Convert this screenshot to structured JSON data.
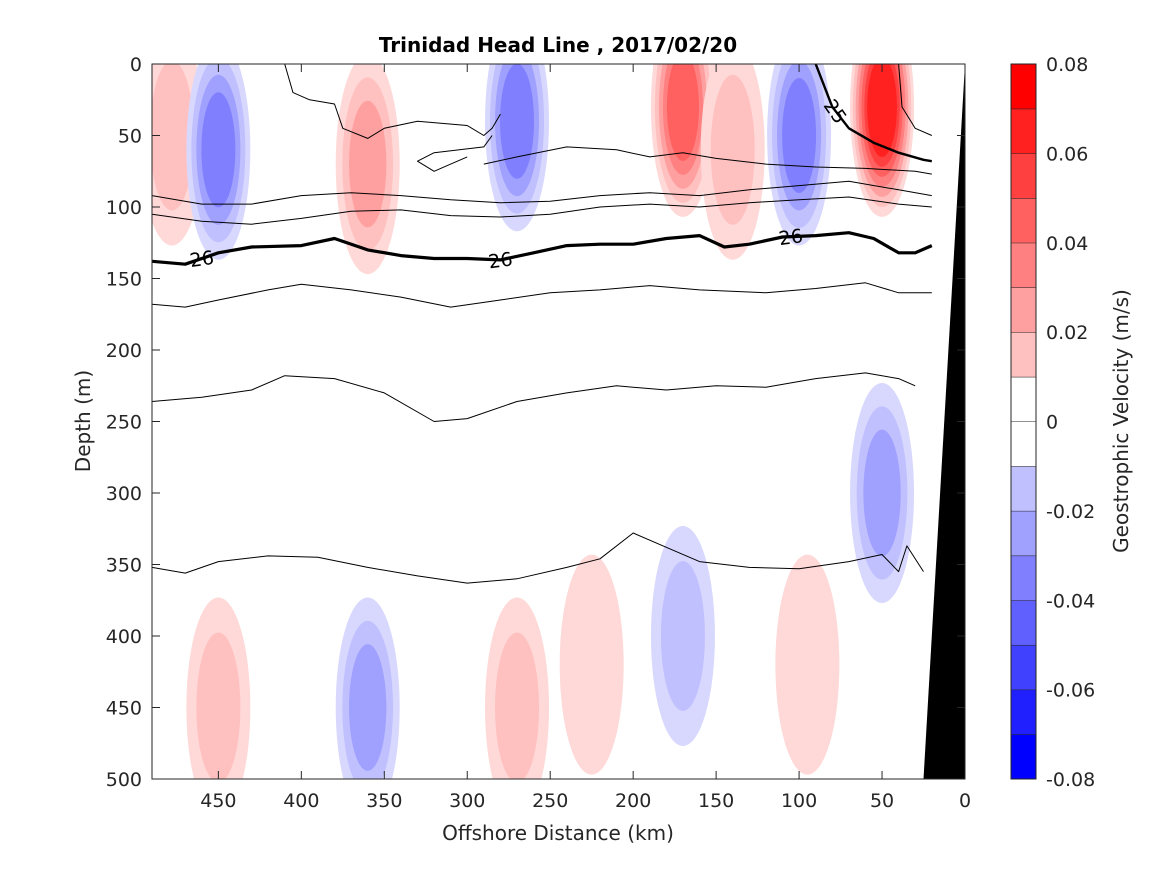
{
  "chart_data": {
    "type": "heatmap",
    "title": "Trinidad Head Line , 2017/02/20",
    "xlabel": "Offshore Distance (km)",
    "ylabel": "Depth (m)",
    "colorbar_label": "Geostrophic Velocity (m/s)",
    "xlim": [
      490,
      0
    ],
    "ylim": [
      0,
      500
    ],
    "x_ticks": [
      450,
      400,
      350,
      300,
      250,
      200,
      150,
      100,
      50,
      0
    ],
    "y_ticks": [
      0,
      50,
      100,
      150,
      200,
      250,
      300,
      350,
      400,
      450,
      500
    ],
    "colorbar_levels": [
      -0.08,
      -0.07,
      -0.06,
      -0.05,
      -0.04,
      -0.03,
      -0.02,
      -0.01,
      0,
      0.01,
      0.02,
      0.03,
      0.04,
      0.05,
      0.06,
      0.07,
      0.08
    ],
    "colorbar_tick_labels": [
      "0.08",
      "0.06",
      "0.04",
      "0.02",
      "0",
      "-0.02",
      "-0.04",
      "-0.06",
      "-0.08"
    ],
    "colorbar_colors": [
      "#0000ff",
      "#2020ff",
      "#4040ff",
      "#6060ff",
      "#8080ff",
      "#a0a0ff",
      "#c0c0ff",
      "#d8d8ff",
      "#ffffff",
      "#ffffff",
      "#ffd8d8",
      "#ffc0c0",
      "#ffa0a0",
      "#ff8080",
      "#ff6060",
      "#ff4040",
      "#ff2020",
      "#ff0000"
    ],
    "velocity_cores": [
      {
        "x": 478,
        "depth": 50,
        "velocity": 0.02
      },
      {
        "x": 450,
        "depth": 60,
        "velocity": -0.04
      },
      {
        "x": 360,
        "depth": 70,
        "velocity": 0.03
      },
      {
        "x": 270,
        "depth": 40,
        "velocity": -0.04
      },
      {
        "x": 170,
        "depth": 30,
        "velocity": 0.05
      },
      {
        "x": 140,
        "depth": 60,
        "velocity": 0.02
      },
      {
        "x": 100,
        "depth": 50,
        "velocity": -0.04
      },
      {
        "x": 50,
        "depth": 30,
        "velocity": 0.07
      },
      {
        "x": 450,
        "depth": 450,
        "velocity": 0.02
      },
      {
        "x": 360,
        "depth": 450,
        "velocity": -0.03
      },
      {
        "x": 270,
        "depth": 450,
        "velocity": 0.02
      },
      {
        "x": 225,
        "depth": 420,
        "velocity": 0.01
      },
      {
        "x": 170,
        "depth": 400,
        "velocity": -0.02
      },
      {
        "x": 95,
        "depth": 420,
        "velocity": 0.01
      },
      {
        "x": 50,
        "depth": 300,
        "velocity": -0.03
      }
    ],
    "isopycnals": [
      {
        "label": "25",
        "width": 2.4,
        "points": [
          [
            90,
            0
          ],
          [
            80,
            30
          ],
          [
            70,
            45
          ],
          [
            55,
            55
          ],
          [
            40,
            62
          ],
          [
            25,
            67
          ],
          [
            20,
            68
          ]
        ]
      },
      {
        "label": "",
        "width": 1,
        "points": [
          [
            290,
            70
          ],
          [
            270,
            65
          ],
          [
            240,
            58
          ],
          [
            210,
            60
          ],
          [
            190,
            65
          ],
          [
            170,
            62
          ],
          [
            150,
            66
          ],
          [
            120,
            70
          ],
          [
            90,
            72
          ],
          [
            60,
            73
          ],
          [
            30,
            75
          ],
          [
            20,
            77
          ]
        ]
      },
      {
        "label": "",
        "width": 1,
        "points": [
          [
            490,
            92
          ],
          [
            460,
            98
          ],
          [
            430,
            98
          ],
          [
            400,
            92
          ],
          [
            370,
            90
          ],
          [
            340,
            92
          ],
          [
            310,
            95
          ],
          [
            280,
            97
          ],
          [
            250,
            96
          ],
          [
            220,
            92
          ],
          [
            190,
            90
          ],
          [
            160,
            92
          ],
          [
            130,
            88
          ],
          [
            100,
            85
          ],
          [
            70,
            82
          ],
          [
            40,
            88
          ],
          [
            20,
            92
          ]
        ]
      },
      {
        "label": "",
        "width": 1,
        "points": [
          [
            490,
            105
          ],
          [
            460,
            110
          ],
          [
            430,
            112
          ],
          [
            400,
            108
          ],
          [
            370,
            103
          ],
          [
            340,
            102
          ],
          [
            310,
            106
          ],
          [
            280,
            107
          ],
          [
            250,
            105
          ],
          [
            220,
            100
          ],
          [
            190,
            98
          ],
          [
            160,
            100
          ],
          [
            130,
            97
          ],
          [
            100,
            95
          ],
          [
            70,
            93
          ],
          [
            40,
            98
          ],
          [
            20,
            100
          ]
        ]
      },
      {
        "label": "26",
        "width": 3.2,
        "points": [
          [
            490,
            138
          ],
          [
            470,
            140
          ],
          [
            450,
            132
          ],
          [
            430,
            128
          ],
          [
            400,
            127
          ],
          [
            380,
            122
          ],
          [
            360,
            130
          ],
          [
            340,
            134
          ],
          [
            320,
            136
          ],
          [
            300,
            136
          ],
          [
            280,
            137
          ],
          [
            260,
            132
          ],
          [
            240,
            127
          ],
          [
            220,
            126
          ],
          [
            200,
            126
          ],
          [
            180,
            122
          ],
          [
            160,
            120
          ],
          [
            145,
            128
          ],
          [
            130,
            126
          ],
          [
            110,
            121
          ],
          [
            90,
            120
          ],
          [
            70,
            118
          ],
          [
            55,
            122
          ],
          [
            40,
            132
          ],
          [
            30,
            132
          ],
          [
            20,
            127
          ]
        ]
      },
      {
        "label": "",
        "width": 1,
        "points": [
          [
            490,
            168
          ],
          [
            470,
            170
          ],
          [
            450,
            165
          ],
          [
            420,
            158
          ],
          [
            400,
            154
          ],
          [
            370,
            158
          ],
          [
            340,
            163
          ],
          [
            310,
            170
          ],
          [
            280,
            165
          ],
          [
            250,
            160
          ],
          [
            220,
            158
          ],
          [
            190,
            155
          ],
          [
            160,
            158
          ],
          [
            120,
            160
          ],
          [
            90,
            157
          ],
          [
            60,
            153
          ],
          [
            40,
            160
          ],
          [
            20,
            160
          ]
        ]
      },
      {
        "label": "",
        "width": 1,
        "points": [
          [
            490,
            236
          ],
          [
            460,
            233
          ],
          [
            430,
            228
          ],
          [
            410,
            218
          ],
          [
            380,
            220
          ],
          [
            350,
            230
          ],
          [
            320,
            250
          ],
          [
            300,
            248
          ],
          [
            270,
            236
          ],
          [
            240,
            230
          ],
          [
            210,
            225
          ],
          [
            180,
            228
          ],
          [
            150,
            225
          ],
          [
            120,
            226
          ],
          [
            90,
            220
          ],
          [
            60,
            216
          ],
          [
            40,
            220
          ],
          [
            30,
            225
          ]
        ]
      },
      {
        "label": "",
        "width": 1,
        "points": [
          [
            490,
            352
          ],
          [
            470,
            356
          ],
          [
            450,
            348
          ],
          [
            420,
            344
          ],
          [
            390,
            345
          ],
          [
            360,
            352
          ],
          [
            330,
            358
          ],
          [
            300,
            363
          ],
          [
            270,
            360
          ],
          [
            240,
            352
          ],
          [
            220,
            346
          ],
          [
            200,
            328
          ],
          [
            180,
            338
          ],
          [
            160,
            348
          ],
          [
            130,
            352
          ],
          [
            100,
            353
          ],
          [
            70,
            348
          ],
          [
            50,
            343
          ],
          [
            40,
            355
          ],
          [
            35,
            337
          ],
          [
            25,
            355
          ]
        ]
      },
      {
        "label": "",
        "width": 1,
        "points": [
          [
            410,
            0
          ],
          [
            405,
            20
          ],
          [
            395,
            25
          ],
          [
            380,
            28
          ],
          [
            375,
            45
          ],
          [
            360,
            52
          ],
          [
            350,
            45
          ],
          [
            330,
            40
          ],
          [
            300,
            43
          ],
          [
            290,
            50
          ],
          [
            285,
            45
          ],
          [
            280,
            35
          ]
        ]
      },
      {
        "label": "",
        "width": 1,
        "points": [
          [
            285,
            50
          ],
          [
            290,
            58
          ],
          [
            320,
            62
          ],
          [
            330,
            68
          ],
          [
            320,
            75
          ],
          [
            310,
            70
          ],
          [
            300,
            65
          ]
        ]
      },
      {
        "label": "",
        "width": 1,
        "points": [
          [
            40,
            0
          ],
          [
            38,
            30
          ],
          [
            30,
            45
          ],
          [
            20,
            50
          ]
        ]
      }
    ],
    "bathymetry": [
      [
        25,
        500
      ],
      [
        0,
        0
      ]
    ]
  }
}
